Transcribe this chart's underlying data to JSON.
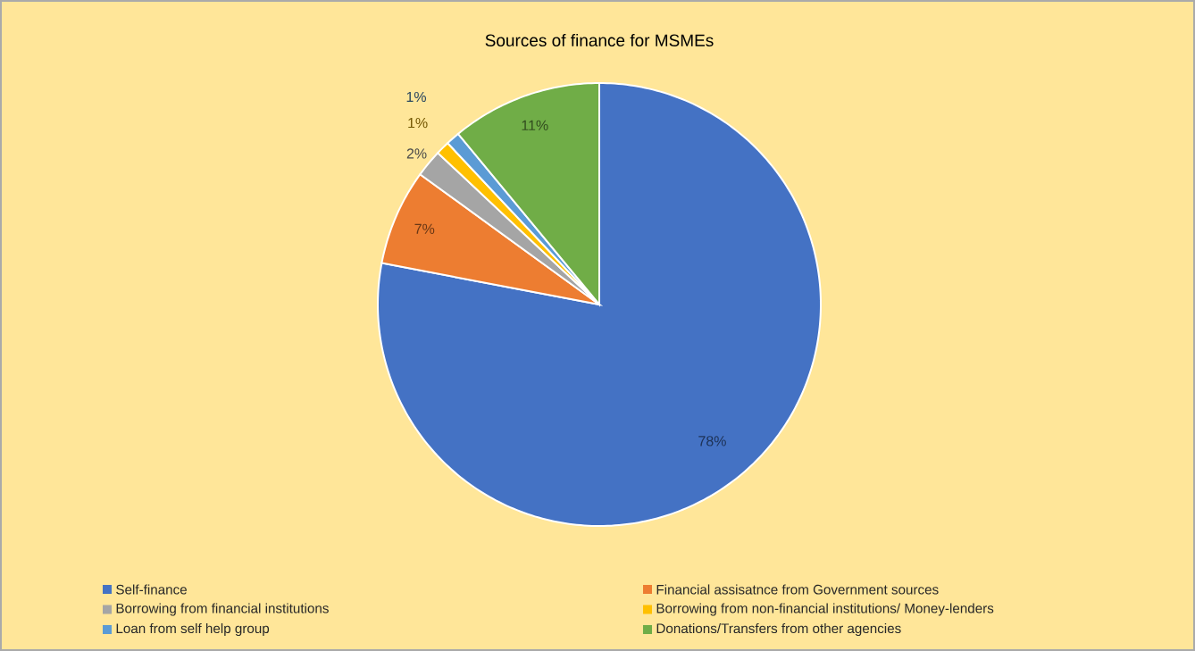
{
  "chart_data": {
    "type": "pie",
    "title": "Sources of finance for MSMEs",
    "categories": [
      "Self-finance",
      "Financial assisatnce from Government sources",
      "Borrowing from financial institutions",
      "Borrowing from non-financial institutions/ Money-lenders",
      "Loan from self help group",
      "Donations/Transfers from other agencies"
    ],
    "values": [
      78,
      7,
      2,
      1,
      1,
      11
    ],
    "value_labels": [
      "78%",
      "7%",
      "2%",
      "1%",
      "1%",
      "11%"
    ],
    "colors": [
      "#4472c4",
      "#ed7d31",
      "#a5a5a5",
      "#ffc000",
      "#5b9bd5",
      "#70ad47"
    ],
    "legend": "bottom"
  }
}
